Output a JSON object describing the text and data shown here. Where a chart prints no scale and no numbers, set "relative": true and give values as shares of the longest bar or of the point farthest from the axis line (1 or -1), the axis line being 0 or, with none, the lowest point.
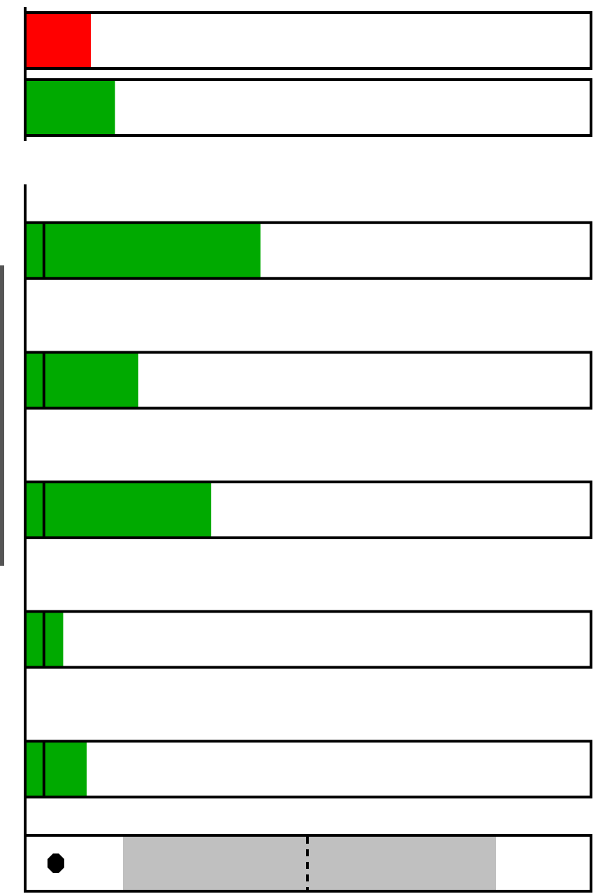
{
  "chart_data": [
    {
      "type": "bar",
      "orientation": "horizontal",
      "relative": true,
      "categories": [
        null,
        null
      ],
      "values": [
        0.73,
        1
      ],
      "colors": [
        "#ff0000",
        "#00aa00"
      ]
    },
    {
      "type": "bar",
      "orientation": "horizontal",
      "relative": true,
      "categories": [
        null,
        null,
        null,
        null,
        null
      ],
      "values": [
        1,
        0.48,
        0.79,
        0.16,
        0.26
      ],
      "colors": [
        "#00aa00",
        "#00aa00",
        "#00aa00",
        "#00aa00",
        "#00aa00"
      ],
      "ref_lines": [
        {
          "axis": "x",
          "value": 0.08,
          "color": "#000000",
          "line_style": "solid"
        }
      ]
    }
  ]
}
